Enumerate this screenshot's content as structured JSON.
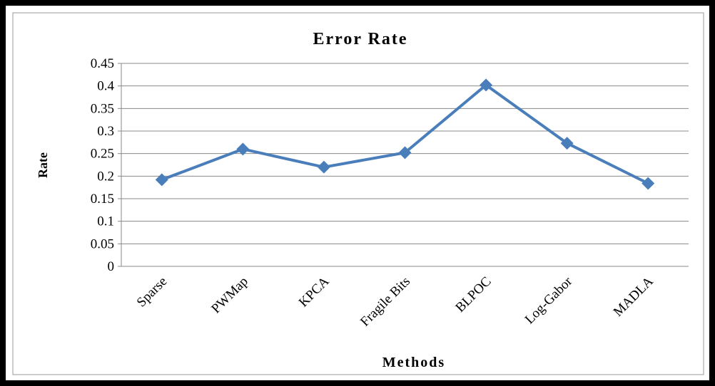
{
  "chart_data": {
    "type": "line",
    "title": "Error  Rate",
    "xlabel": "Methods",
    "ylabel": "Rate",
    "categories": [
      "Sparse",
      "PWMap",
      "KPCA",
      "Fragile  Bits",
      "BLPOC",
      "Log-Gabor",
      "MADLA"
    ],
    "series": [
      {
        "name": "Error Rate",
        "color": "#4a7ebb",
        "values": [
          0.192,
          0.26,
          0.22,
          0.252,
          0.402,
          0.273,
          0.184
        ]
      }
    ],
    "ylim": [
      0,
      0.45
    ],
    "yticks": [
      0,
      0.05,
      0.1,
      0.15,
      0.2,
      0.25,
      0.3,
      0.35,
      0.4,
      0.45
    ],
    "grid": true
  }
}
